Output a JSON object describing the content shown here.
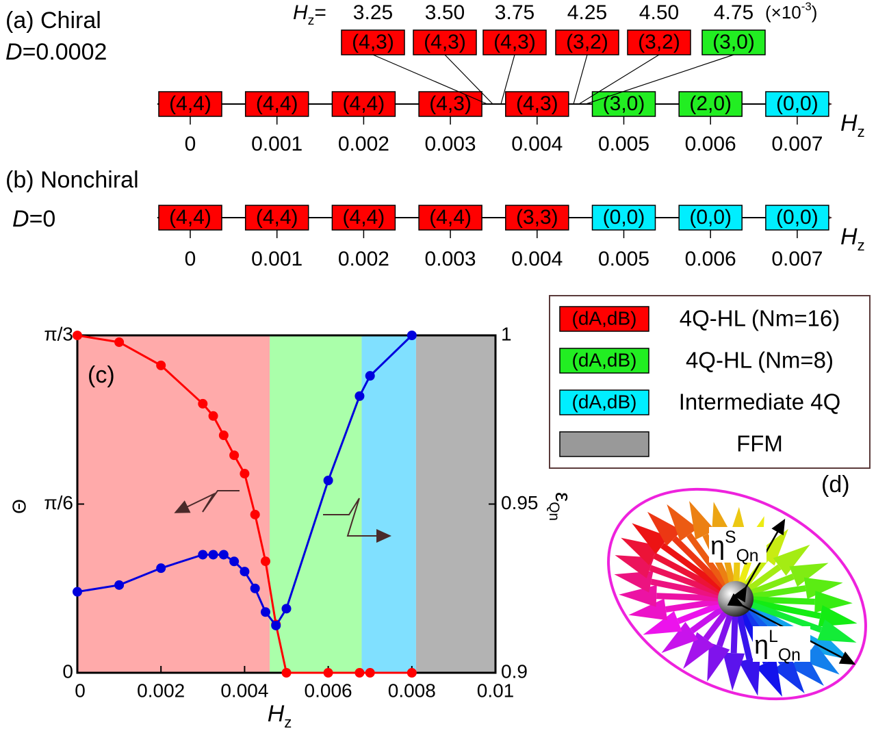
{
  "panel_a": {
    "label": "(a) Chiral",
    "param_symbol": "D",
    "param_value": "=0.0002",
    "phases": [
      {
        "label": "(4,4)",
        "color": "#ff0000"
      },
      {
        "label": "(4,4)",
        "color": "#ff0000"
      },
      {
        "label": "(4,4)",
        "color": "#ff0000"
      },
      {
        "label": "(4,3)",
        "color": "#ff0000"
      },
      {
        "label": "(4,3)",
        "color": "#ff0000"
      },
      {
        "label": "(3,0)",
        "color": "#22ee22"
      },
      {
        "label": "(2,0)",
        "color": "#22ee22"
      },
      {
        "label": "(0,0)",
        "color": "#00eeff"
      }
    ],
    "tick_labels": [
      "0",
      "0.001",
      "0.002",
      "0.003",
      "0.004",
      "0.005",
      "0.006",
      "0.007"
    ],
    "axis_symbol": "H",
    "axis_sub": "z",
    "inset_symbol": "H",
    "inset_sub": "z",
    "inset_eq": "=",
    "inset_values": [
      "3.25",
      "3.50",
      "3.75",
      "4.25",
      "4.50",
      "4.75"
    ],
    "inset_unit": "(×10",
    "inset_unit_exp": "-3",
    "inset_unit_close": ")",
    "inset_phases": [
      {
        "label": "(4,3)",
        "color": "#ff0000"
      },
      {
        "label": "(4,3)",
        "color": "#ff0000"
      },
      {
        "label": "(4,3)",
        "color": "#ff0000"
      },
      {
        "label": "(3,2)",
        "color": "#ff0000"
      },
      {
        "label": "(3,2)",
        "color": "#ff0000"
      },
      {
        "label": "(3,0)",
        "color": "#22ee22"
      }
    ]
  },
  "panel_b": {
    "label": "(b) Nonchiral",
    "param_symbol": "D",
    "param_value": "=0",
    "phases": [
      {
        "label": "(4,4)",
        "color": "#ff0000"
      },
      {
        "label": "(4,4)",
        "color": "#ff0000"
      },
      {
        "label": "(4,4)",
        "color": "#ff0000"
      },
      {
        "label": "(4,4)",
        "color": "#ff0000"
      },
      {
        "label": "(3,3)",
        "color": "#ff0000"
      },
      {
        "label": "(0,0)",
        "color": "#00eeff"
      },
      {
        "label": "(0,0)",
        "color": "#00eeff"
      },
      {
        "label": "(0,0)",
        "color": "#00eeff"
      }
    ],
    "tick_labels": [
      "0",
      "0.001",
      "0.002",
      "0.003",
      "0.004",
      "0.005",
      "0.006",
      "0.007"
    ],
    "axis_symbol": "H",
    "axis_sub": "z"
  },
  "legend": {
    "items": [
      {
        "swatch": "(dA,dB)",
        "color": "#ff0000",
        "text": "4Q-HL (Nm=16)"
      },
      {
        "swatch": "(dA,dB)",
        "color": "#22ee22",
        "text": "4Q-HL (Nm=8)"
      },
      {
        "swatch": "(dA,dB)",
        "color": "#00eeff",
        "text": "Intermediate 4Q"
      },
      {
        "swatch": null,
        "color": "#999999",
        "text": "FFM"
      }
    ]
  },
  "chart_data": {
    "type": "line",
    "panel_label": "(c)",
    "x_label_symbol": "H",
    "x_label_sub": "z",
    "y_label": "Θ",
    "y2_label_symbol": "ε",
    "y2_label_sub": "Qn",
    "x": [
      0,
      0.001,
      0.002,
      0.003,
      0.00325,
      0.0035,
      0.00375,
      0.004,
      0.00425,
      0.0045,
      0.00475,
      0.005,
      0.006,
      0.00675,
      0.007,
      0.008
    ],
    "series": [
      {
        "name": "Θ",
        "color": "#ff0000",
        "axis": "y",
        "values": [
          1.047,
          1.026,
          0.954,
          0.835,
          0.797,
          0.737,
          0.675,
          0.618,
          0.491,
          0.346,
          0.15,
          0,
          0,
          0,
          0,
          0
        ]
      },
      {
        "name": "ε",
        "color": "#0000dd",
        "axis": "y2",
        "values": [
          0.924,
          0.926,
          0.931,
          0.935,
          0.935,
          0.935,
          0.933,
          0.93,
          0.925,
          0.918,
          0.914,
          0.919,
          0.957,
          0.982,
          0.988,
          1.0
        ]
      }
    ],
    "regions": [
      {
        "from": 0,
        "to": 0.0046,
        "color": "#ffaaaa"
      },
      {
        "from": 0.0046,
        "to": 0.0068,
        "color": "#aaffaa"
      },
      {
        "from": 0.0068,
        "to": 0.0081,
        "color": "#80e0ff"
      },
      {
        "from": 0.0081,
        "to": 0.01,
        "color": "#b3b3b3"
      }
    ],
    "xlim": [
      0,
      0.01
    ],
    "xticks": [
      0,
      0.002,
      0.004,
      0.006,
      0.008,
      0.01
    ],
    "ylim": [
      0,
      1.0472
    ],
    "yticks": [
      0,
      {
        "value": 0.5236,
        "label": "π/6"
      },
      {
        "value": 1.0472,
        "label": "π/3"
      }
    ],
    "y2lim": [
      0.9,
      1
    ],
    "y2ticks": [
      0.9,
      0.95,
      1
    ]
  },
  "panel_d": {
    "label": "(d)",
    "eta_s": {
      "base": "η",
      "sup": "S",
      "sub": "Qn"
    },
    "eta_l": {
      "base": "η",
      "sup": "L",
      "sub": "Qn"
    }
  }
}
